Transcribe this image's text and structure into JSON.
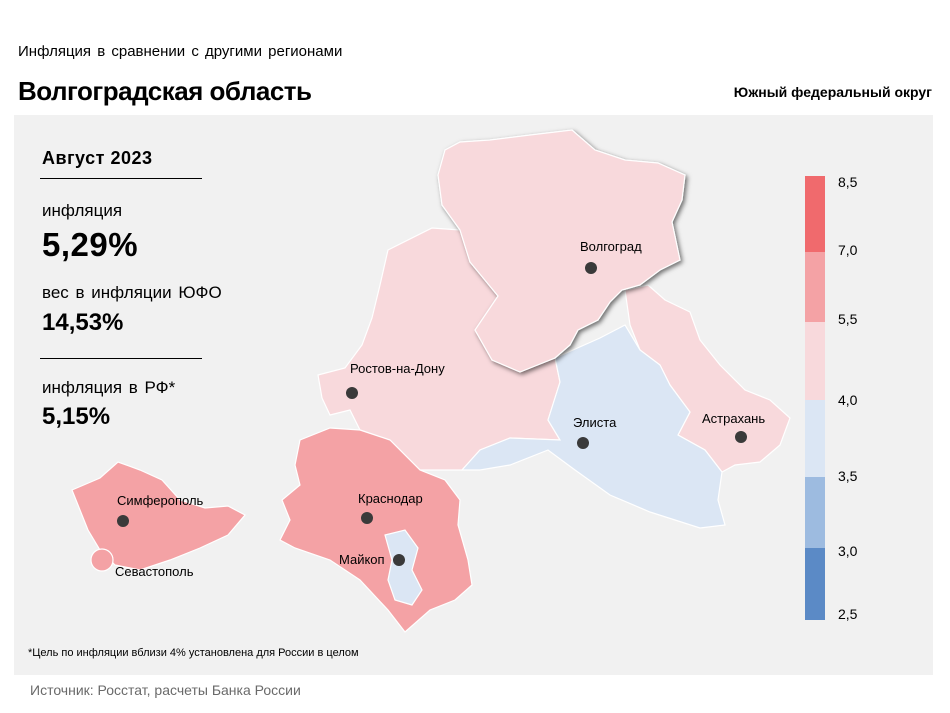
{
  "header": {
    "subtitle": "Инфляция  в сравнении  с другими  регионами",
    "title": "Волгоградская область",
    "district": "Южный федеральный округ"
  },
  "stats": {
    "period": "Август 2023",
    "inflation_label": "инфляция",
    "inflation_value": "5,29%",
    "weight_label": "вес в инфляции  ЮФО",
    "weight_value": "14,53%",
    "rf_label": "инфляция  в РФ*",
    "rf_value": "5,15%"
  },
  "map": {
    "cities": {
      "volgograd": "Волгоград",
      "rostov": "Ростов-на-Дону",
      "elista": "Элиста",
      "astrakhan": "Астрахань",
      "krasnodar": "Краснодар",
      "maykop": "Майкоп",
      "simferopol": "Симферополь",
      "sevastopol": "Севастополь"
    },
    "colors": {
      "band_2_5_3_0": "#5b8ac6",
      "band_3_0_3_5": "#9dbbe0",
      "band_3_5_4_0": "#dbe6f4",
      "band_4_0_5_5": "#f8d9dc",
      "band_5_5_7_0": "#f4a2a5",
      "band_7_0_8_5": "#f06a6d"
    },
    "highlighted_region": "volgograd"
  },
  "legend": {
    "ticks": [
      "8,5",
      "7,0",
      "5,5",
      "4,0",
      "3,5",
      "3,0",
      "2,5"
    ]
  },
  "footnote": "*Цель по инфляции вблизи 4% установлена для России в целом",
  "source": "Источник: Росстат, расчеты Банка России"
}
